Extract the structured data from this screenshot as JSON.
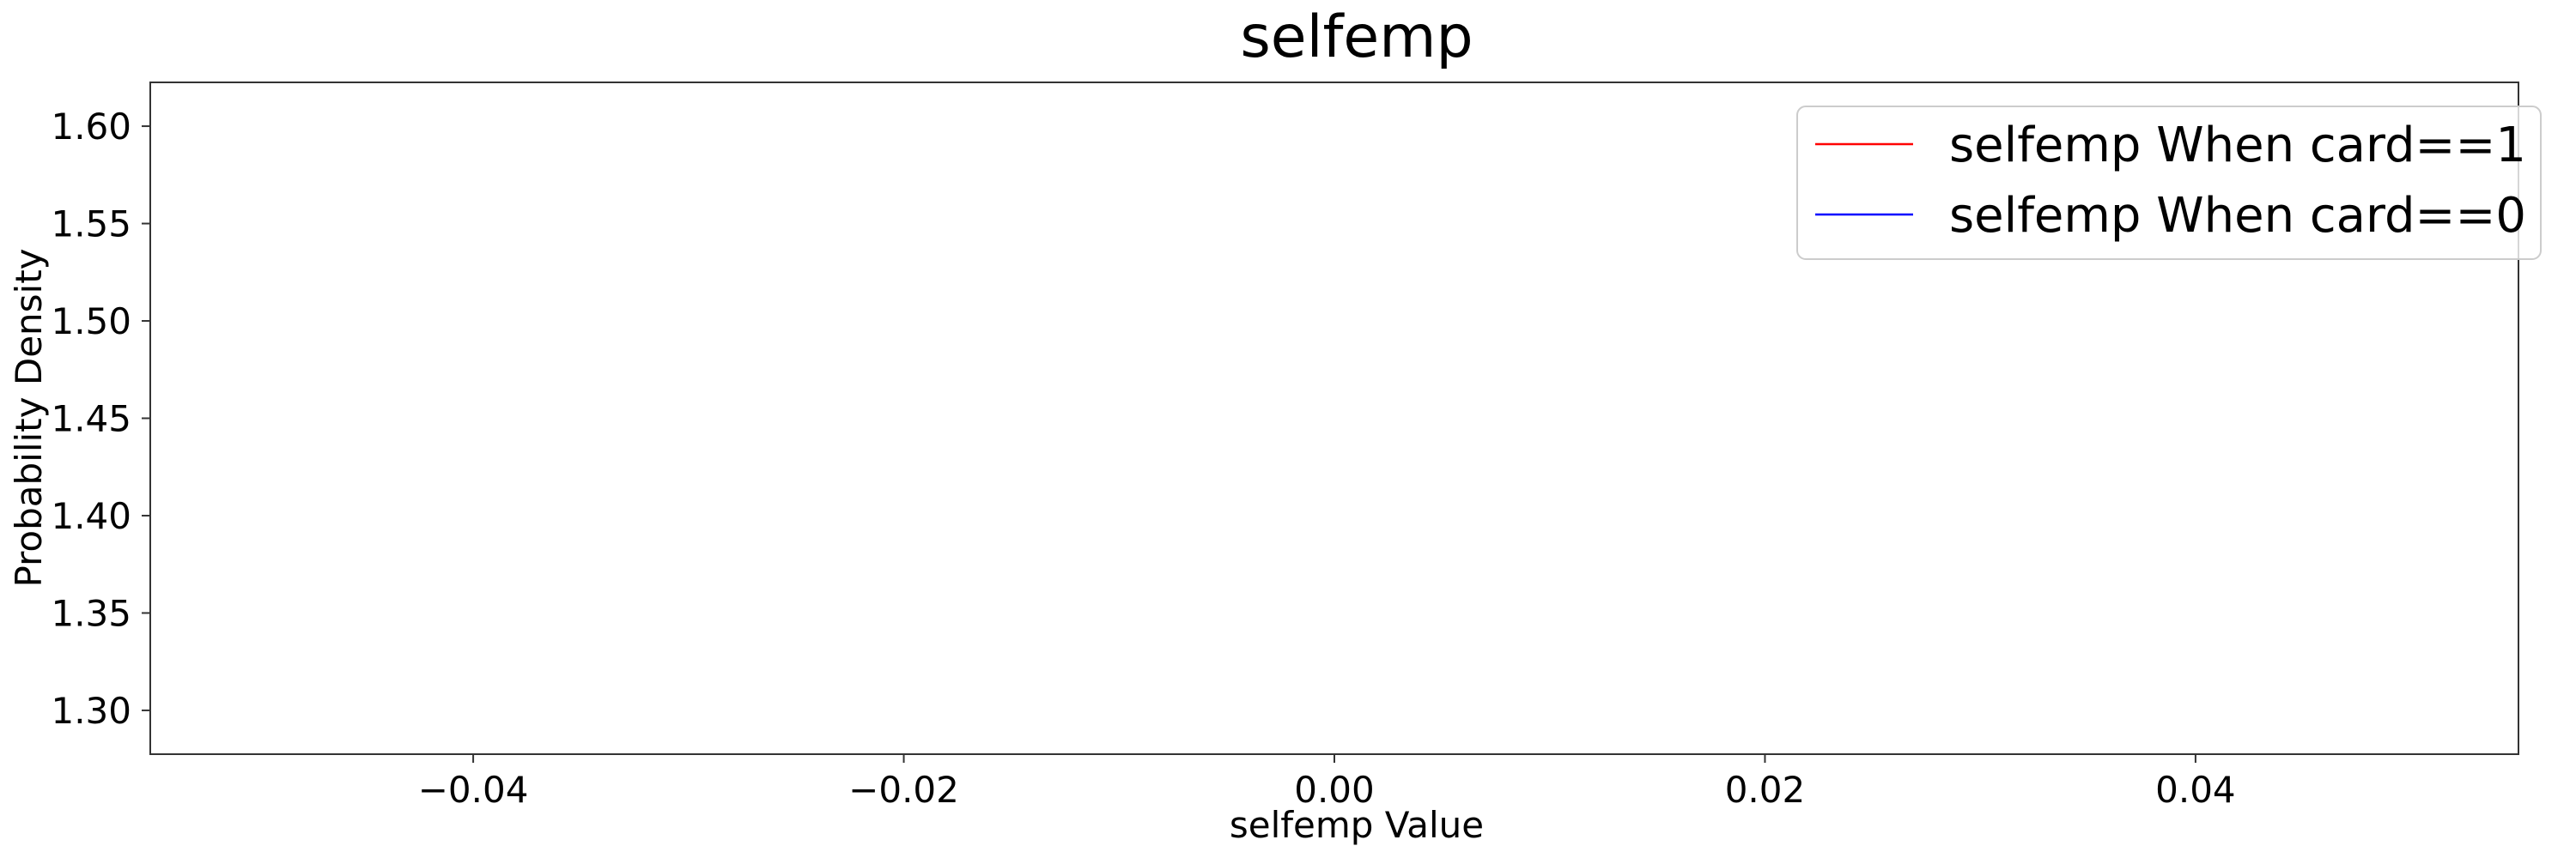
{
  "chart_data": {
    "type": "line",
    "title": "selfemp",
    "xlabel": "selfemp Value",
    "ylabel": "Probability Density",
    "xlim": [
      -0.055,
      0.055
    ],
    "ylim": [
      1.2775,
      1.6225
    ],
    "xticks": [
      -0.04,
      -0.02,
      0.0,
      0.02,
      0.04
    ],
    "xtick_labels": [
      "−0.04",
      "−0.02",
      "0.00",
      "0.02",
      "0.04"
    ],
    "yticks": [
      1.3,
      1.35,
      1.4,
      1.45,
      1.5,
      1.55,
      1.6
    ],
    "ytick_labels": [
      "1.30",
      "1.35",
      "1.40",
      "1.45",
      "1.50",
      "1.55",
      "1.60"
    ],
    "grid": false,
    "legend_position": "top-right",
    "series": [
      {
        "name": "selfemp When card==1",
        "color": "#ff0000",
        "x": [],
        "y": []
      },
      {
        "name": "selfemp When card==0",
        "color": "#0000ff",
        "x": [],
        "y": []
      }
    ]
  }
}
